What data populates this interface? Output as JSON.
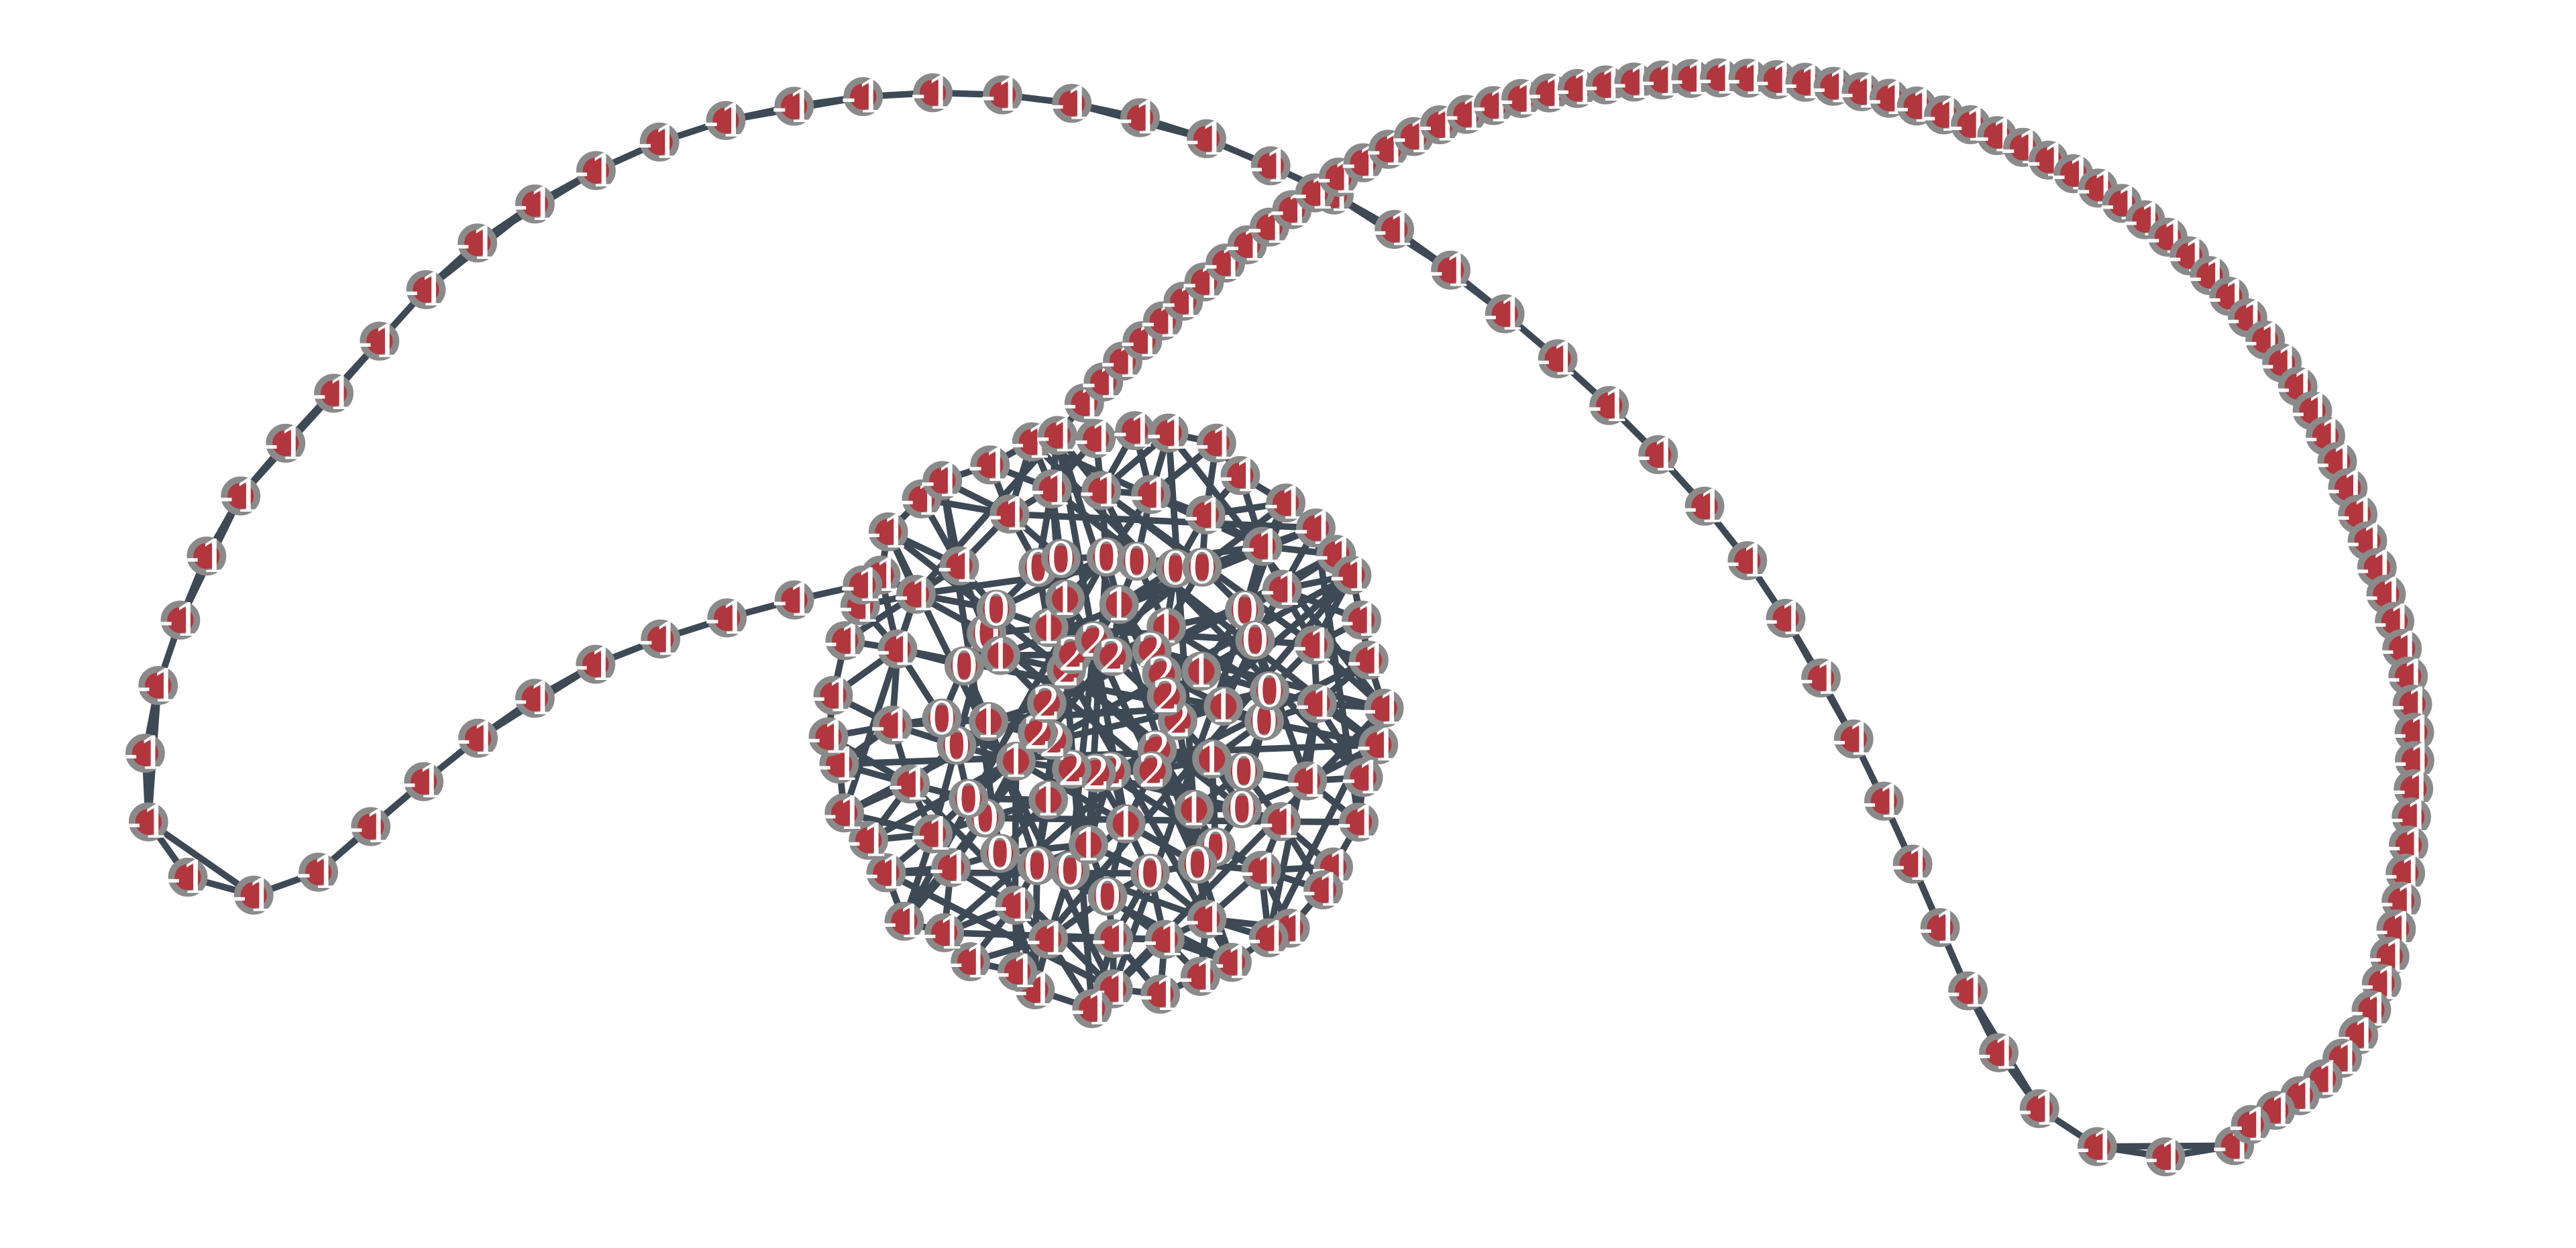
{
  "graph": {
    "node_color": "#b2363d",
    "node_stroke_color": "#8a8a8a",
    "edge_color": "#3d4a55",
    "label_color": "#ffffff",
    "background": "#ffffff",
    "core": {
      "ring_outer": {
        "count": 44,
        "label": "-1"
      },
      "ring_middle": {
        "count": 24,
        "label": "-1"
      },
      "ring_zero": {
        "count": 26,
        "label": "0"
      },
      "ring_one": {
        "count": 14,
        "label": "1"
      },
      "ring_two": {
        "count": 16,
        "label": "2"
      }
    },
    "chains": {
      "left_loop": {
        "count": 56,
        "label": "-1"
      },
      "right_loop": {
        "count": 80,
        "label": "-1"
      }
    }
  }
}
